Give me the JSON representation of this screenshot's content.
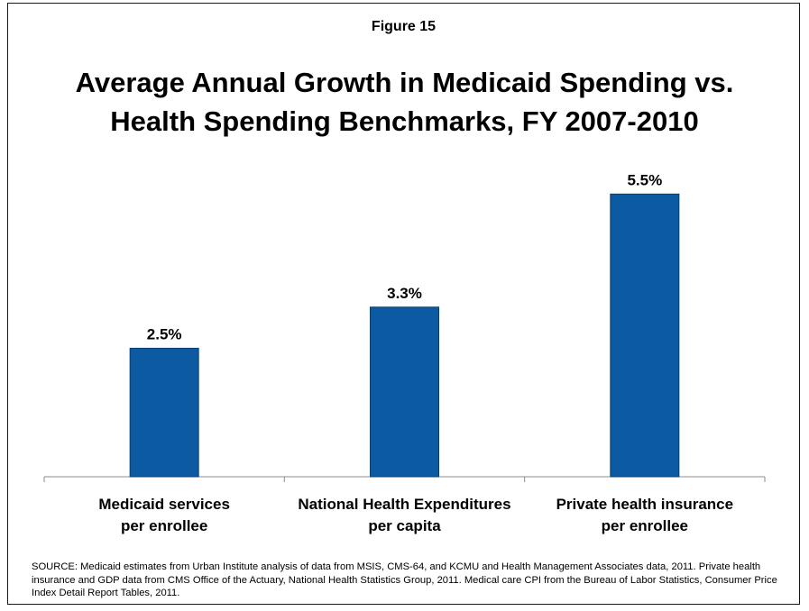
{
  "figure_label": "Figure 15",
  "title_line1": "Average Annual Growth in Medicaid Spending vs.",
  "title_line2": "Health Spending Benchmarks, FY 2007-2010",
  "source_text": "SOURCE: Medicaid estimates from Urban Institute analysis of data from MSIS,  CMS-64, and KCMU and Health Management Associates data, 2011. Private health insurance and GDP data from CMS Office of the Actuary, National Health Statistics Group, 2011. Medical care CPI from the Bureau of Labor Statistics, Consumer Price Index Detail Report Tables, 2011.",
  "chart_data": {
    "type": "bar",
    "title": "Average Annual Growth in Medicaid Spending vs. Health Spending Benchmarks, FY 2007-2010",
    "categories": [
      [
        "Medicaid services",
        "per enrollee"
      ],
      [
        "National Health Expenditures",
        "per capita"
      ],
      [
        "Private health insurance",
        "per enrollee"
      ]
    ],
    "values": [
      2.5,
      3.3,
      5.5
    ],
    "data_labels": [
      "2.5%",
      "3.3%",
      "5.5%"
    ],
    "unit": "%",
    "ylim": [
      0,
      6.4
    ],
    "bar_color": "#0b5aa2",
    "grid": false
  }
}
